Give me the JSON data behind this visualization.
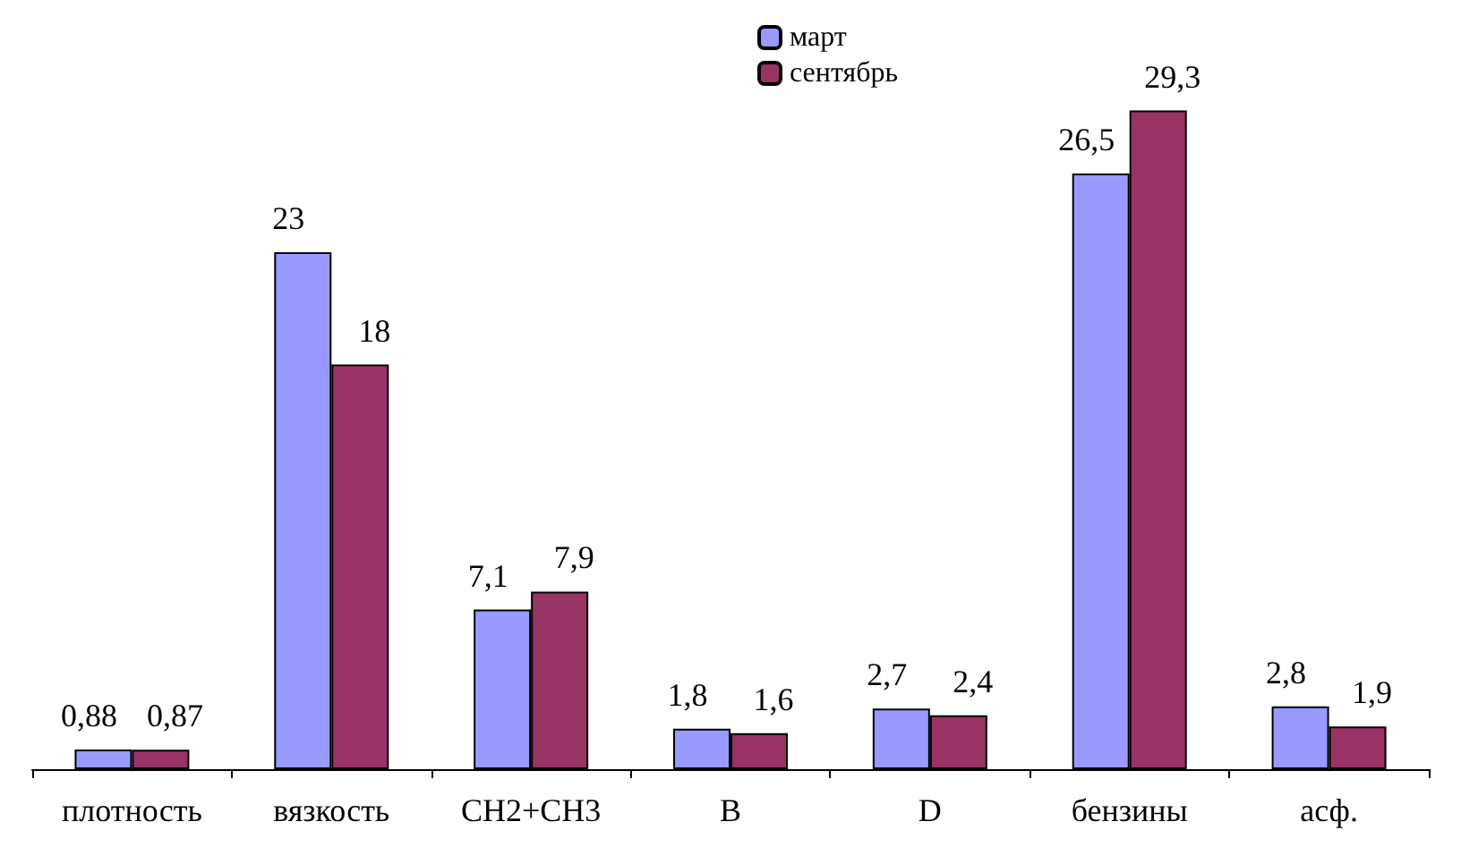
{
  "chart_data": {
    "type": "bar",
    "categories": [
      "плотность",
      "вязкость",
      "CH2+CH3",
      "B",
      "D",
      "бензины",
      "асф."
    ],
    "series": [
      {
        "name": "март",
        "color": "#9999ff",
        "values": [
          0.88,
          23,
          7.1,
          1.8,
          2.7,
          26.5,
          2.8
        ],
        "value_labels": [
          "0,88",
          "23",
          "7,1",
          "1,8",
          "2,7",
          "26,5",
          "2,8"
        ]
      },
      {
        "name": "сентябрь",
        "color": "#993366",
        "values": [
          0.87,
          18,
          7.9,
          1.6,
          2.4,
          29.3,
          1.9
        ],
        "value_labels": [
          "0,87",
          "18",
          "7,9",
          "1,6",
          "2,4",
          "29,3",
          "1,9"
        ]
      }
    ],
    "legend": "top",
    "grid": false
  }
}
